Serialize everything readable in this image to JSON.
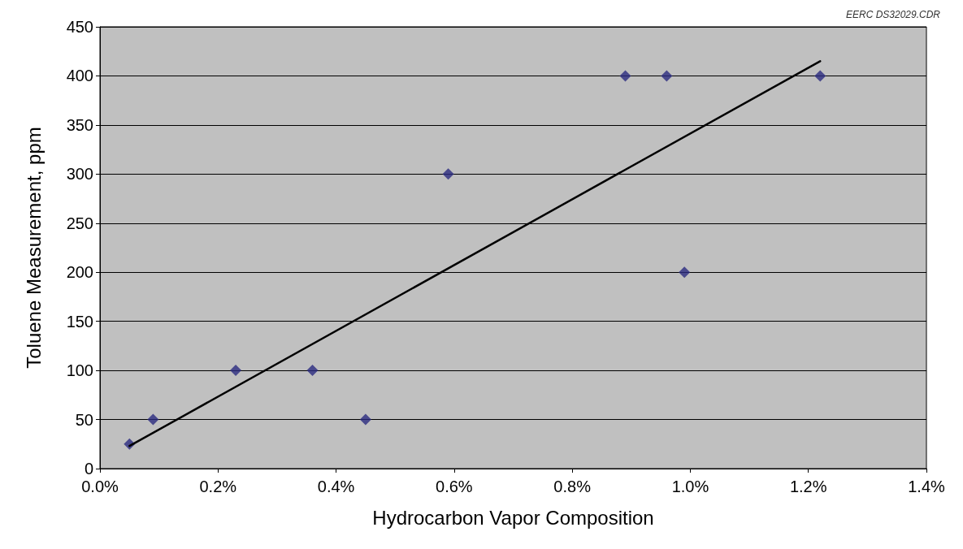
{
  "chart_data": {
    "type": "scatter",
    "xlabel": "Hydrocarbon Vapor Composition",
    "ylabel": "Toluene Measurement, ppm",
    "annotations": [
      "EERC DS32029.CDR"
    ],
    "series": [
      {
        "marker": "diamond",
        "color": "#2b2a80",
        "x": [
          0.05,
          0.09,
          0.23,
          0.36,
          0.45,
          0.59,
          0.89,
          0.96,
          0.99,
          1.22
        ],
        "values": [
          25,
          50,
          100,
          100,
          50,
          300,
          400,
          400,
          200,
          400
        ]
      },
      {
        "type": "line",
        "marker": "none",
        "color": "#000000",
        "x": [
          0.05,
          1.22
        ],
        "values": [
          23,
          415
        ]
      }
    ],
    "xlim": [
      0,
      1.4
    ],
    "xticks": [
      {
        "value": 0,
        "label": "0.0%"
      },
      {
        "value": 0.2,
        "label": "0.2%"
      },
      {
        "value": 0.4,
        "label": "0.4%"
      },
      {
        "value": 0.6,
        "label": "0.6%"
      },
      {
        "value": 0.8,
        "label": "0.8%"
      },
      {
        "value": 1.0,
        "label": "1.0%"
      },
      {
        "value": 1.2,
        "label": "1.2%"
      },
      {
        "value": 1.4,
        "label": "1.4%"
      }
    ],
    "ylim": [
      0,
      450
    ],
    "yticks": [
      0,
      50,
      100,
      150,
      200,
      250,
      300,
      350,
      400,
      450
    ],
    "grid": "y",
    "line_style": "solid"
  }
}
